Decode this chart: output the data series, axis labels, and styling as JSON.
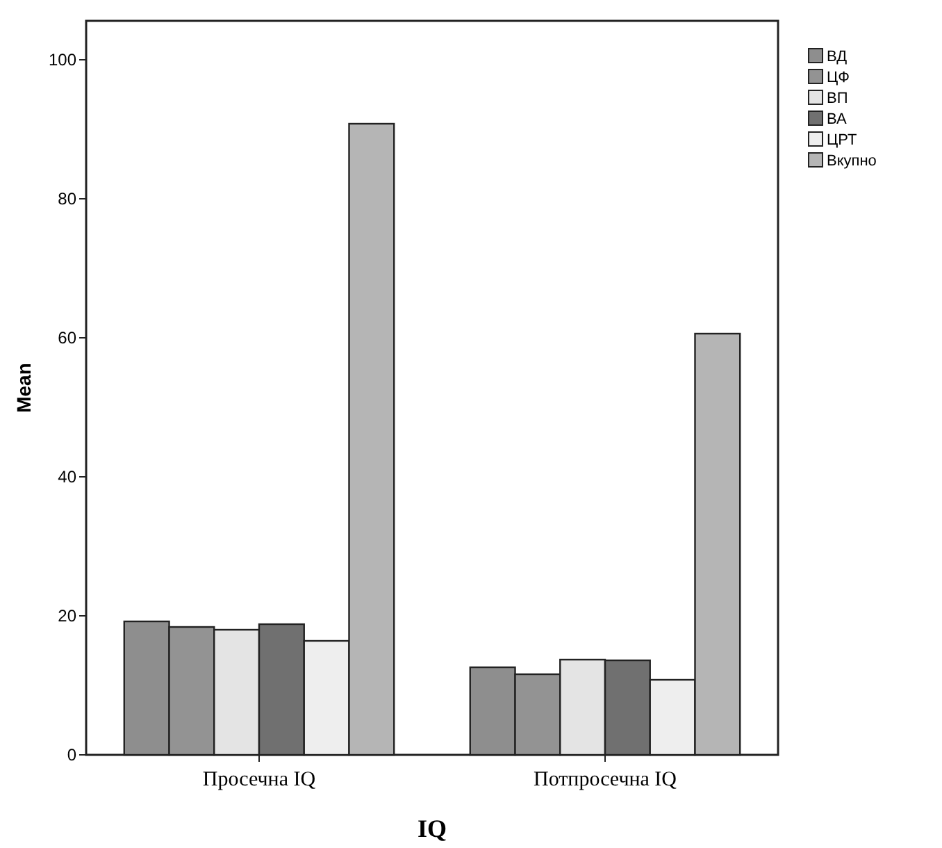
{
  "chart_data": {
    "type": "bar",
    "xlabel": "IQ",
    "ylabel": "Mean",
    "categories": [
      "Просечна IQ",
      "Потпросечна IQ"
    ],
    "series": [
      {
        "name": "ВД",
        "color": "#8e8e8e",
        "values": [
          19.2,
          12.6
        ]
      },
      {
        "name": "ЦФ",
        "color": "#939393",
        "values": [
          18.4,
          11.6
        ]
      },
      {
        "name": "ВП",
        "color": "#e4e4e4",
        "values": [
          18.0,
          13.7
        ]
      },
      {
        "name": "ВА",
        "color": "#707070",
        "values": [
          18.8,
          13.6
        ]
      },
      {
        "name": "ЦРТ",
        "color": "#eeeeee",
        "values": [
          16.4,
          10.8
        ]
      },
      {
        "name": "Вкупно",
        "color": "#b5b5b5",
        "values": [
          90.8,
          60.6
        ]
      }
    ],
    "ylim": [
      0,
      105.6
    ],
    "yticks": [
      0,
      20,
      40,
      60,
      80,
      100
    ],
    "legend": "top right"
  }
}
